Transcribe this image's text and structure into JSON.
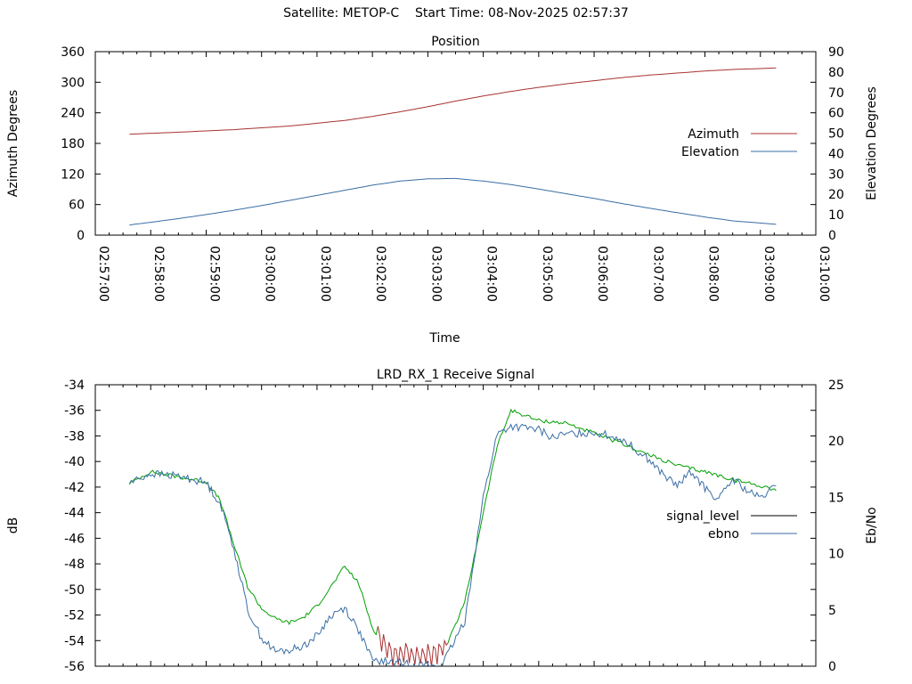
{
  "header": {
    "satellite_label": "Satellite: METOP-C",
    "start_time_label": "Start Time: 08-Nov-2025 02:57:37"
  },
  "chart_data": [
    {
      "type": "line",
      "title": "Position",
      "xlabel": "Time",
      "ylabel": "Azimuth Degrees",
      "y2label": "Elevation Degrees",
      "x_ticks": [
        "02:57:00",
        "02:58:00",
        "02:59:00",
        "03:00:00",
        "03:01:00",
        "03:02:00",
        "03:03:00",
        "03:04:00",
        "03:05:00",
        "03:06:00",
        "03:07:00",
        "03:08:00",
        "03:09:00",
        "03:10:00"
      ],
      "xlim": [
        "02:57:00",
        "03:10:00"
      ],
      "ylim": [
        0,
        360
      ],
      "y_ticks": [
        0,
        60,
        120,
        180,
        240,
        300,
        360
      ],
      "y2lim": [
        0,
        90
      ],
      "y2_ticks": [
        0,
        10,
        20,
        30,
        40,
        50,
        60,
        70,
        80,
        90
      ],
      "legend_position": "right",
      "grid": false,
      "series": [
        {
          "name": "Azimuth",
          "axis": "y",
          "color": "#a83232",
          "x": [
            "02:57:37",
            "02:58:30",
            "02:59:30",
            "03:00:30",
            "03:01:30",
            "03:02:00",
            "03:02:30",
            "03:03:00",
            "03:03:30",
            "03:04:00",
            "03:04:30",
            "03:05:00",
            "03:05:30",
            "03:06:00",
            "03:06:30",
            "03:07:00",
            "03:07:30",
            "03:08:00",
            "03:08:30",
            "03:09:17"
          ],
          "values": [
            198,
            202,
            207,
            214,
            225,
            233,
            242,
            252,
            263,
            273,
            282,
            290,
            297,
            303,
            309,
            314,
            318,
            322,
            325,
            328
          ]
        },
        {
          "name": "Elevation",
          "axis": "y2",
          "color": "#3a6ea5",
          "x": [
            "02:57:37",
            "02:58:00",
            "02:58:30",
            "02:59:00",
            "02:59:30",
            "03:00:00",
            "03:00:30",
            "03:01:00",
            "03:01:30",
            "03:02:00",
            "03:02:30",
            "03:03:00",
            "03:03:30",
            "03:04:00",
            "03:04:30",
            "03:05:00",
            "03:05:30",
            "03:06:00",
            "03:06:30",
            "03:07:00",
            "03:07:30",
            "03:08:00",
            "03:08:30",
            "03:09:17"
          ],
          "values": [
            5,
            6.3,
            8.1,
            10.1,
            12.2,
            14.5,
            17,
            19.5,
            22,
            24.5,
            26.5,
            27.6,
            27.8,
            26.5,
            24.8,
            22.6,
            20.3,
            18,
            15.5,
            13.2,
            11,
            8.9,
            7,
            5.3
          ]
        }
      ]
    },
    {
      "type": "line",
      "title": "LRD_RX_1 Receive Signal",
      "xlabel": "",
      "ylabel": "dB",
      "y2label": "Eb/No",
      "xlim": [
        "02:57:00",
        "03:10:00"
      ],
      "ylim": [
        -56,
        -34
      ],
      "y_ticks": [
        -56,
        -54,
        -52,
        -50,
        -48,
        -46,
        -44,
        -42,
        -40,
        -38,
        -36,
        -34
      ],
      "y2lim": [
        0,
        25
      ],
      "y2_ticks": [
        0,
        5,
        10,
        15,
        20,
        25
      ],
      "legend_position": "right",
      "grid": false,
      "series": [
        {
          "name": "signal_level",
          "axis": "y",
          "color": "#00a000",
          "low_color": "#a83232",
          "low_range_x": [
            "03:02:05",
            "03:03:20"
          ],
          "x": [
            "02:57:37",
            "02:58:00",
            "02:58:30",
            "02:59:00",
            "02:59:15",
            "02:59:30",
            "02:59:45",
            "03:00:00",
            "03:00:15",
            "03:00:30",
            "03:00:45",
            "03:01:00",
            "03:01:15",
            "03:01:30",
            "03:01:45",
            "03:02:00",
            "03:02:20",
            "03:02:40",
            "03:03:00",
            "03:03:20",
            "03:03:40",
            "03:04:00",
            "03:04:15",
            "03:04:30",
            "03:05:00",
            "03:05:30",
            "03:06:00",
            "03:06:30",
            "03:07:00",
            "03:07:30",
            "03:08:00",
            "03:08:30",
            "03:09:00",
            "03:09:17"
          ],
          "values": [
            -41.7,
            -40.8,
            -41.2,
            -41.6,
            -43.0,
            -46.5,
            -49.8,
            -51.5,
            -52.3,
            -52.6,
            -52.2,
            -51.3,
            -49.8,
            -48.2,
            -49.5,
            -53.0,
            -55.0,
            -55.0,
            -55.2,
            -54.5,
            -51.0,
            -44.0,
            -38.8,
            -36.0,
            -36.8,
            -37.0,
            -37.8,
            -38.6,
            -39.5,
            -40.3,
            -40.8,
            -41.4,
            -41.9,
            -42.2
          ]
        },
        {
          "name": "ebno",
          "axis": "y2",
          "color": "#3a6ea5",
          "x": [
            "02:57:37",
            "02:58:00",
            "02:58:30",
            "02:59:00",
            "02:59:15",
            "02:59:30",
            "02:59:45",
            "03:00:00",
            "03:00:15",
            "03:00:30",
            "03:00:45",
            "03:01:00",
            "03:01:15",
            "03:01:30",
            "03:01:45",
            "03:02:00",
            "03:03:15",
            "03:03:40",
            "03:04:00",
            "03:04:15",
            "03:04:30",
            "03:05:00",
            "03:05:15",
            "03:05:30",
            "03:06:00",
            "03:06:30",
            "03:07:00",
            "03:07:15",
            "03:07:30",
            "03:07:45",
            "03:08:00",
            "03:08:15",
            "03:08:30",
            "03:08:45",
            "03:09:00",
            "03:09:17"
          ],
          "values": [
            16.3,
            17.1,
            16.9,
            16.3,
            14.5,
            10.5,
            5.0,
            2.5,
            1.3,
            1.4,
            1.8,
            2.7,
            4.5,
            5.2,
            3.2,
            0.5,
            0.0,
            4.0,
            15.0,
            20.6,
            21.3,
            21.0,
            20.3,
            20.6,
            20.8,
            20.2,
            18.3,
            17.0,
            16.0,
            17.3,
            15.8,
            14.8,
            16.6,
            15.6,
            14.9,
            16.0
          ]
        }
      ]
    }
  ]
}
